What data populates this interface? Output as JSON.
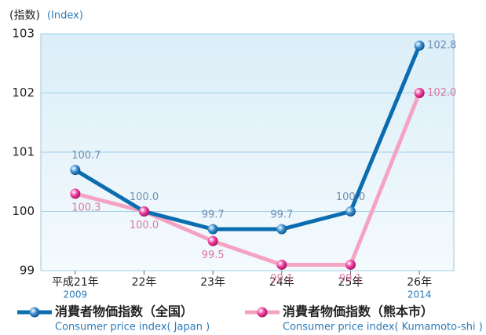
{
  "chart_data": {
    "type": "line",
    "y_label": "(指数)",
    "y_label_en": "(Index)",
    "categories": [
      "平成21年",
      "22年",
      "23年",
      "24年",
      "25年",
      "26年"
    ],
    "category_sublabels": [
      "2009",
      null,
      null,
      null,
      null,
      "2014"
    ],
    "ylim": [
      99,
      103
    ],
    "yticks": [
      99,
      100,
      101,
      102,
      103
    ],
    "grid": true,
    "series": [
      {
        "name": "消費者物価指数（全国）",
        "name_en": "Consumer price index( Japan )",
        "color": "#0b6db0",
        "label_color": "#6f8fb4",
        "values": [
          100.7,
          100,
          99.7,
          99.7,
          100,
          102.8
        ],
        "value_labels": [
          "100.7",
          "100.0",
          "99.7",
          "99.7",
          "100.0",
          "102.8"
        ]
      },
      {
        "name": "消費者物価指数（熊本市）",
        "name_en": "Consumer price index( Kumamoto-shi )",
        "color": "#f4a3c3",
        "label_color": "#d97aa2",
        "values": [
          100.3,
          100,
          99.5,
          99.1,
          99.1,
          102.0
        ],
        "value_labels": [
          "100.3",
          "100.0",
          "99.5",
          "99.1",
          "99.1",
          "102.0"
        ]
      }
    ]
  }
}
